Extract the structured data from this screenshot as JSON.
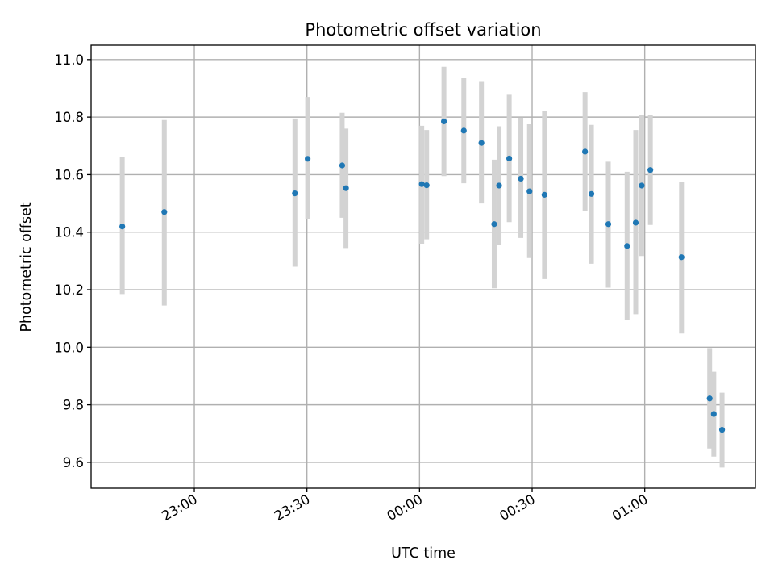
{
  "chart_data": {
    "type": "scatter",
    "title": "Photometric offset variation",
    "xlabel": "UTC time",
    "ylabel": "Photometric offset",
    "x_unit": "minutes after 00:00 UTC",
    "xlim": [
      -87.5,
      89.5
    ],
    "ylim": [
      9.51,
      11.05
    ],
    "x_ticks": [
      {
        "value": -60,
        "label": "23:00"
      },
      {
        "value": -30,
        "label": "23:30"
      },
      {
        "value": 0,
        "label": "00:00"
      },
      {
        "value": 30,
        "label": "00:30"
      },
      {
        "value": 60,
        "label": "01:00"
      }
    ],
    "y_ticks": [
      9.6,
      9.8,
      10.0,
      10.2,
      10.4,
      10.6,
      10.8,
      11.0
    ],
    "y_tick_labels": [
      "9.6",
      "9.8",
      "10.0",
      "10.2",
      "10.4",
      "10.6",
      "10.8",
      "11.0"
    ],
    "grid": true,
    "marker_color": "#1f77b4",
    "errorbar_color": "#d3d3d3",
    "points": [
      {
        "x": -79.2,
        "y": 10.42,
        "lo": 10.185,
        "hi": 10.66
      },
      {
        "x": -68.0,
        "y": 10.47,
        "lo": 10.145,
        "hi": 10.79
      },
      {
        "x": -33.2,
        "y": 10.535,
        "lo": 10.28,
        "hi": 10.795
      },
      {
        "x": -29.8,
        "y": 10.655,
        "lo": 10.445,
        "hi": 10.87
      },
      {
        "x": -20.6,
        "y": 10.632,
        "lo": 10.45,
        "hi": 10.815
      },
      {
        "x": -19.6,
        "y": 10.553,
        "lo": 10.345,
        "hi": 10.76
      },
      {
        "x": 0.6,
        "y": 10.567,
        "lo": 10.36,
        "hi": 10.77
      },
      {
        "x": 1.9,
        "y": 10.563,
        "lo": 10.375,
        "hi": 10.755
      },
      {
        "x": 6.5,
        "y": 10.785,
        "lo": 10.595,
        "hi": 10.975
      },
      {
        "x": 11.8,
        "y": 10.753,
        "lo": 10.57,
        "hi": 10.935
      },
      {
        "x": 16.5,
        "y": 10.71,
        "lo": 10.5,
        "hi": 10.925
      },
      {
        "x": 19.9,
        "y": 10.428,
        "lo": 10.205,
        "hi": 10.652
      },
      {
        "x": 21.2,
        "y": 10.562,
        "lo": 10.355,
        "hi": 10.768
      },
      {
        "x": 23.9,
        "y": 10.656,
        "lo": 10.435,
        "hi": 10.878
      },
      {
        "x": 27.0,
        "y": 10.586,
        "lo": 10.38,
        "hi": 10.798
      },
      {
        "x": 29.3,
        "y": 10.542,
        "lo": 10.31,
        "hi": 10.775
      },
      {
        "x": 33.3,
        "y": 10.53,
        "lo": 10.237,
        "hi": 10.822
      },
      {
        "x": 44.1,
        "y": 10.68,
        "lo": 10.475,
        "hi": 10.887
      },
      {
        "x": 45.8,
        "y": 10.533,
        "lo": 10.29,
        "hi": 10.773
      },
      {
        "x": 50.3,
        "y": 10.428,
        "lo": 10.207,
        "hi": 10.645
      },
      {
        "x": 55.3,
        "y": 10.352,
        "lo": 10.095,
        "hi": 10.61
      },
      {
        "x": 57.6,
        "y": 10.433,
        "lo": 10.115,
        "hi": 10.755
      },
      {
        "x": 59.2,
        "y": 10.562,
        "lo": 10.317,
        "hi": 10.808
      },
      {
        "x": 61.5,
        "y": 10.616,
        "lo": 10.425,
        "hi": 10.808
      },
      {
        "x": 69.8,
        "y": 10.313,
        "lo": 10.048,
        "hi": 10.575
      },
      {
        "x": 77.3,
        "y": 9.822,
        "lo": 9.648,
        "hi": 9.997
      },
      {
        "x": 78.4,
        "y": 9.768,
        "lo": 9.62,
        "hi": 9.915
      },
      {
        "x": 80.6,
        "y": 9.713,
        "lo": 9.582,
        "hi": 9.842
      }
    ]
  }
}
